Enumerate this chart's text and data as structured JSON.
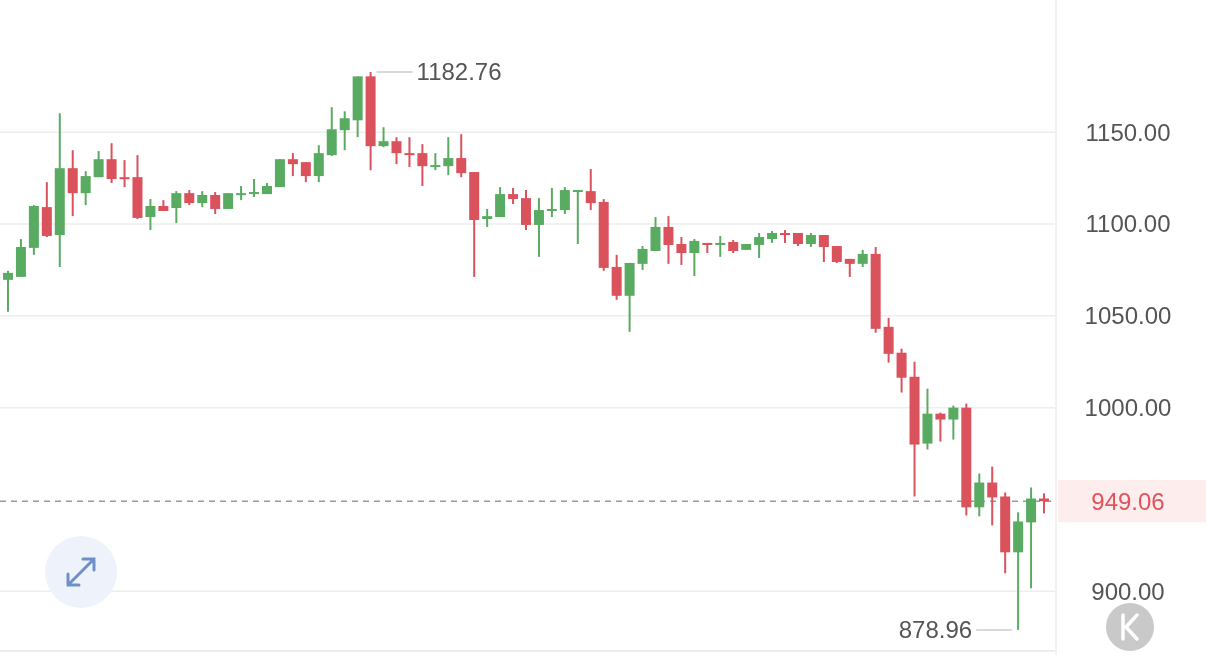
{
  "chart_data": {
    "type": "candlestick",
    "categories": [
      null,
      null,
      null,
      null,
      null,
      null,
      null,
      null,
      null,
      null,
      null,
      null,
      null,
      null,
      null,
      null,
      null,
      null,
      null,
      null,
      null,
      null,
      null,
      null,
      null,
      null,
      null,
      null,
      null,
      null,
      null,
      null,
      null,
      null,
      null,
      null,
      null,
      null,
      null,
      null,
      null,
      null,
      null,
      null,
      null,
      null,
      null,
      null,
      null,
      null,
      null,
      null,
      null,
      null,
      null,
      null,
      null,
      null,
      null,
      null,
      null,
      null,
      null,
      null,
      null,
      null,
      null,
      null,
      null,
      null,
      null,
      null,
      null,
      null,
      null,
      null,
      null,
      null,
      null,
      null,
      null
    ],
    "ohlc": [
      [
        1069.6,
        1074.5,
        1052.2,
        1073.4
      ],
      [
        1071.2,
        1091.8,
        1071.2,
        1087.5
      ],
      [
        1087,
        1110.3,
        1083.2,
        1109.8
      ],
      [
        1109.2,
        1122.8,
        1092.9,
        1093.5
      ],
      [
        1094,
        1160.3,
        1076.6,
        1130.4
      ],
      [
        1130.4,
        1140.2,
        1104.3,
        1116.8
      ],
      [
        1116.8,
        1128.8,
        1110.3,
        1126.1
      ],
      [
        1125.5,
        1139.7,
        1125.5,
        1135.3
      ],
      [
        1135.3,
        1144.0,
        1122.3,
        1124.5
      ],
      [
        1125.5,
        1134.8,
        1120.1,
        1124.5
      ],
      [
        1125.5,
        1137.5,
        1102.7,
        1103.3
      ],
      [
        1103.8,
        1113.6,
        1096.7,
        1109.8
      ],
      [
        1109.8,
        1113.0,
        1107.1,
        1107.1
      ],
      [
        1108.7,
        1117.9,
        1100.5,
        1116.8
      ],
      [
        1116.8,
        1118.5,
        1110.3,
        1111.4
      ],
      [
        1111.4,
        1117.9,
        1109.2,
        1115.8
      ],
      [
        1115.8,
        1117.4,
        1105.4,
        1108.2
      ],
      [
        1108.2,
        1116.8,
        1108.2,
        1116.8
      ],
      [
        1115.8,
        1120.7,
        1113.0,
        1116.8
      ],
      [
        1116.8,
        1124.5,
        1114.7,
        1117.4
      ],
      [
        1116.3,
        1122.3,
        1116.3,
        1120.7
      ],
      [
        1120.1,
        1135.3,
        1120.1,
        1135.3
      ],
      [
        1135.3,
        1138.6,
        1126.1,
        1132.6
      ],
      [
        1133.7,
        1133.7,
        1122.8,
        1126.1
      ],
      [
        1126.1,
        1142.9,
        1122.8,
        1138.6
      ],
      [
        1137.5,
        1163.6,
        1137.0,
        1151.6
      ],
      [
        1151.1,
        1161.4,
        1140.2,
        1157.6
      ],
      [
        1156.5,
        1180.4,
        1147.3,
        1180.4
      ],
      [
        1180.4,
        1182.76,
        1129.3,
        1142.4
      ],
      [
        1142.4,
        1152.7,
        1141.8,
        1145.1
      ],
      [
        1145.1,
        1147.3,
        1132.6,
        1138.6
      ],
      [
        1138.6,
        1147.3,
        1131.0,
        1137.5
      ],
      [
        1138.6,
        1143.5,
        1120.7,
        1131.5
      ],
      [
        1131.0,
        1138.6,
        1129.3,
        1132.1
      ],
      [
        1131.5,
        1147.3,
        1126.6,
        1135.9
      ],
      [
        1135.9,
        1148.9,
        1125.5,
        1127.7
      ],
      [
        1128.3,
        1128.3,
        1071.2,
        1102.2
      ],
      [
        1102.7,
        1108.2,
        1098.4,
        1104.3
      ],
      [
        1103.8,
        1120.1,
        1103.8,
        1116.3
      ],
      [
        1116.3,
        1119.6,
        1110.9,
        1113.6
      ],
      [
        1114.1,
        1118.5,
        1096.7,
        1099.5
      ],
      [
        1099.5,
        1114.1,
        1082.1,
        1107.6
      ],
      [
        1107.1,
        1119.6,
        1103.8,
        1108.2
      ],
      [
        1107.6,
        1120.1,
        1105.4,
        1118.5
      ],
      [
        1117.9,
        1118.5,
        1089.1,
        1118.5
      ],
      [
        1117.9,
        1129.9,
        1107.6,
        1111.4
      ],
      [
        1112.0,
        1113.6,
        1074.5,
        1076.1
      ],
      [
        1076.6,
        1083.2,
        1058.7,
        1060.9
      ],
      [
        1060.9,
        1078.8,
        1041.3,
        1078.8
      ],
      [
        1078.3,
        1088.0,
        1075.0,
        1086.4
      ],
      [
        1085.3,
        1103.8,
        1085.3,
        1098.4
      ],
      [
        1098.4,
        1104.3,
        1078.3,
        1088.6
      ],
      [
        1089.1,
        1092.9,
        1077.7,
        1084.2
      ],
      [
        1084.2,
        1091.8,
        1071.7,
        1090.8
      ],
      [
        1089.7,
        1089.7,
        1084.2,
        1088.6
      ],
      [
        1088.6,
        1093.5,
        1082.1,
        1089.7
      ],
      [
        1090.2,
        1091.3,
        1084.2,
        1085.3
      ],
      [
        1085.9,
        1089.1,
        1085.9,
        1089.1
      ],
      [
        1088.6,
        1095.1,
        1081.5,
        1092.9
      ],
      [
        1091.8,
        1096.2,
        1089.7,
        1095.1
      ],
      [
        1095.1,
        1096.7,
        1089.7,
        1094.0
      ],
      [
        1095.1,
        1095.1,
        1088.0,
        1089.1
      ],
      [
        1089.1,
        1095.1,
        1087.5,
        1094.0
      ],
      [
        1094.0,
        1094.0,
        1079.3,
        1087.5
      ],
      [
        1088.0,
        1088.0,
        1078.8,
        1079.3
      ],
      [
        1081.0,
        1081.0,
        1071.2,
        1078.3
      ],
      [
        1078.3,
        1085.9,
        1076.6,
        1083.7
      ],
      [
        1083.7,
        1087.5,
        1040.8,
        1042.9
      ],
      [
        1044.0,
        1048.9,
        1024.5,
        1029.3
      ],
      [
        1029.9,
        1032.1,
        1008.2,
        1016.3
      ],
      [
        1016.8,
        1025.0,
        951.6,
        979.9
      ],
      [
        980.4,
        1010.3,
        977.2,
        996.7
      ],
      [
        996.7,
        997.3,
        981.5,
        993.5
      ],
      [
        993.5,
        1001.1,
        982.6,
        1000.0
      ],
      [
        1000.0,
        1002.2,
        941.3,
        945.7
      ],
      [
        945.7,
        964.1,
        940.8,
        959.2
      ],
      [
        959.2,
        967.9,
        935.9,
        951.1
      ],
      [
        951.6,
        953.8,
        909.8,
        921.2
      ],
      [
        921.2,
        943.0,
        878.96,
        938.0
      ],
      [
        937.5,
        956.5,
        901.6,
        950.5
      ],
      [
        950.5,
        953.3,
        942.4,
        949.06
      ]
    ],
    "colors": [
      "#5aab62",
      "#5aab62",
      "#5aab62",
      "#d9525c",
      "#5aab62",
      "#d9525c",
      "#5aab62",
      "#5aab62",
      "#d9525c",
      "#d9525c",
      "#d9525c",
      "#5aab62",
      "#d9525c",
      "#5aab62",
      "#d9525c",
      "#5aab62",
      "#d9525c",
      "#5aab62",
      "#5aab62",
      "#5aab62",
      "#5aab62",
      "#5aab62",
      "#d9525c",
      "#d9525c",
      "#5aab62",
      "#5aab62",
      "#5aab62",
      "#5aab62",
      "#d9525c",
      "#5aab62",
      "#d9525c",
      "#d9525c",
      "#d9525c",
      "#5aab62",
      "#5aab62",
      "#d9525c",
      "#d9525c",
      "#5aab62",
      "#5aab62",
      "#d9525c",
      "#d9525c",
      "#5aab62",
      "#5aab62",
      "#5aab62",
      "#5aab62",
      "#d9525c",
      "#d9525c",
      "#d9525c",
      "#5aab62",
      "#5aab62",
      "#5aab62",
      "#d9525c",
      "#d9525c",
      "#5aab62",
      "#d9525c",
      "#5aab62",
      "#d9525c",
      "#5aab62",
      "#5aab62",
      "#5aab62",
      "#d9525c",
      "#d9525c",
      "#5aab62",
      "#d9525c",
      "#d9525c",
      "#d9525c",
      "#5aab62",
      "#d9525c",
      "#d9525c",
      "#d9525c",
      "#d9525c",
      "#5aab62",
      "#d9525c",
      "#5aab62",
      "#d9525c",
      "#5aab62",
      "#d9525c",
      "#d9525c",
      "#5aab62",
      "#5aab62",
      "#d9525c"
    ],
    "ylim": [
      868,
      1222
    ],
    "yticks": [
      {
        "value": 900,
        "label": "900.00"
      },
      {
        "value": 1000,
        "label": "1000.00"
      },
      {
        "value": 1050,
        "label": "1050.00"
      },
      {
        "value": 1100,
        "label": "1100.00"
      },
      {
        "value": 1150,
        "label": "1150.00"
      }
    ],
    "grid": "y",
    "tick_labels": "y",
    "ref_lines": [
      {
        "axis": "y",
        "value": 949.06,
        "label": "949.06",
        "color": "#9a9a9a",
        "line_style": "dashed"
      }
    ],
    "annotations": [
      "1182.76",
      "878.96"
    ]
  }
}
